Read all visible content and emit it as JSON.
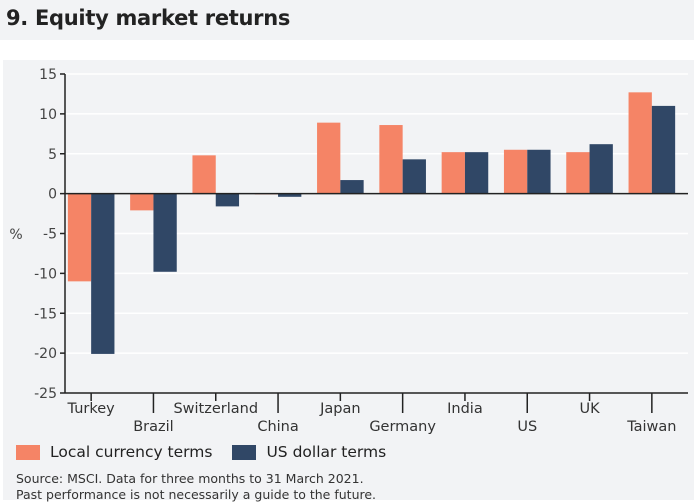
{
  "header": {
    "title": "9. Equity market returns"
  },
  "chart_data": {
    "type": "bar",
    "ylabel": "%",
    "ylim": [
      -25,
      15
    ],
    "yticks": [
      15,
      10,
      5,
      0,
      -5,
      -10,
      -15,
      -20,
      -25
    ],
    "grid": true,
    "categories": [
      "Turkey",
      "Brazil",
      "Switzerland",
      "China",
      "Japan",
      "Germany",
      "India",
      "US",
      "UK",
      "Taiwan"
    ],
    "series": [
      {
        "name": "Local currency terms",
        "color": "#f58466",
        "values": [
          -11.0,
          -2.1,
          4.8,
          -0.1,
          8.9,
          8.6,
          5.2,
          5.5,
          5.2,
          12.7
        ]
      },
      {
        "name": "US dollar terms",
        "color": "#304766",
        "values": [
          -20.1,
          -9.8,
          -1.6,
          -0.4,
          1.7,
          4.3,
          5.2,
          5.5,
          6.2,
          11.0
        ]
      }
    ],
    "legend": "bottom-left"
  },
  "footer": {
    "source": "Source: MSCI. Data for three months to 31 March 2021.",
    "note": "Past performance is not necessarily a guide to the future."
  }
}
